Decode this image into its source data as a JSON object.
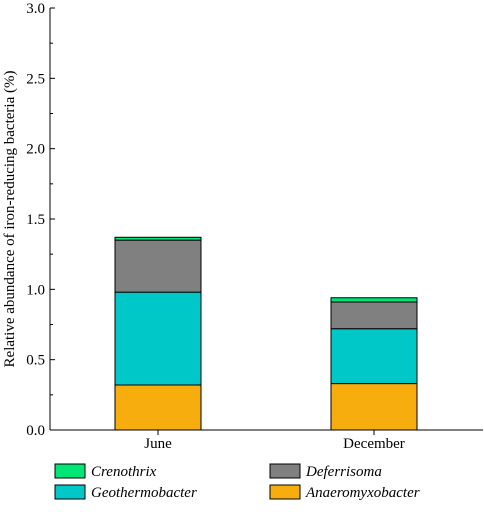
{
  "chart_data": {
    "type": "bar",
    "stacked": true,
    "title": "",
    "xlabel": "",
    "ylabel": "Relative abundance of iron-reducing bacteria (%)",
    "ylim": [
      0,
      3.0
    ],
    "yticks": [
      "0.0",
      "0.5",
      "1.0",
      "1.5",
      "2.0",
      "2.5",
      "3.0"
    ],
    "categories": [
      "June",
      "December"
    ],
    "series": [
      {
        "name": "Anaeromyxobacter",
        "color": "#f7ad0e",
        "values": [
          0.32,
          0.33
        ]
      },
      {
        "name": "Geothermobacter",
        "color": "#00c8c8",
        "values": [
          0.66,
          0.39
        ]
      },
      {
        "name": "Deferrisoma",
        "color": "#808080",
        "values": [
          0.37,
          0.19
        ]
      },
      {
        "name": "Crenothrix",
        "color": "#00e676",
        "values": [
          0.02,
          0.03
        ]
      }
    ],
    "legend": {
      "placement": "bottom",
      "order": [
        "Crenothrix",
        "Deferrisoma",
        "Geothermobacter",
        "Anaeromyxobacter"
      ]
    },
    "grid": false
  }
}
